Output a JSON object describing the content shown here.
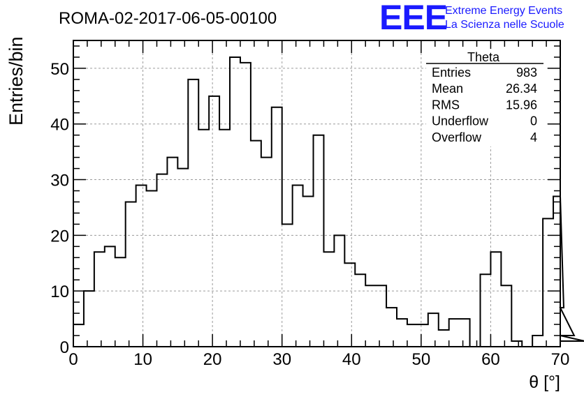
{
  "chart_data": {
    "type": "histogram",
    "title": "ROMA-02-2017-06-05-00100",
    "xlabel": "θ [°]",
    "ylabel": "Entries/bin",
    "xlim": [
      0,
      70
    ],
    "ylim": [
      0,
      55
    ],
    "x_ticks": [
      0,
      10,
      20,
      30,
      40,
      50,
      60,
      70
    ],
    "y_ticks": [
      0,
      10,
      20,
      30,
      40,
      50
    ],
    "grid": true,
    "bin_width": 1.5,
    "bin_start": 0,
    "values": [
      4,
      10,
      17,
      18,
      16,
      26,
      29,
      28,
      31,
      34,
      32,
      48,
      39,
      45,
      39,
      52,
      51,
      37,
      34,
      43,
      22,
      29,
      27,
      38,
      17,
      20,
      15,
      13,
      11,
      11,
      7,
      5,
      4,
      4,
      6,
      3,
      5,
      5,
      0,
      13,
      17,
      11,
      1,
      0,
      2,
      23,
      27,
      7,
      2,
      1
    ],
    "stats": {
      "name": "Theta",
      "rows": [
        {
          "label": "Entries",
          "value": "983"
        },
        {
          "label": "Mean",
          "value": "26.34"
        },
        {
          "label": "RMS",
          "value": "15.96"
        },
        {
          "label": "Underflow",
          "value": "0"
        },
        {
          "label": "Overflow",
          "value": "4"
        }
      ]
    }
  },
  "logo": {
    "mark": "EEE",
    "line1": "Extreme Energy Events",
    "line2": "La Scienza nelle Scuole"
  }
}
